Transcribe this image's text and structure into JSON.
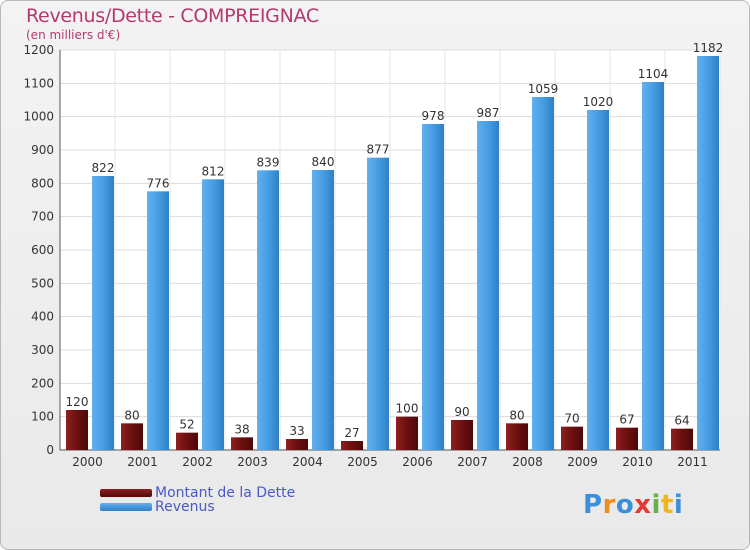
{
  "header": {
    "title": "Revenus/Dette - COMPREIGNAC",
    "subtitle": "(en milliers d'€)"
  },
  "legend": {
    "items": [
      {
        "label": "Montant de la Dette",
        "color": "#6b0f0f"
      },
      {
        "label": "Revenus",
        "color": "#4a9ee0"
      }
    ]
  },
  "logo": {
    "text": "Proxiti"
  },
  "colors": {
    "debt": "#6b0f0f",
    "debt_light": "#a03434",
    "revenue": "#3f95dc",
    "revenue_light": "#62b0ee",
    "title": "#b43a6e"
  },
  "chart_data": {
    "type": "bar",
    "title": "Revenus/Dette - COMPREIGNAC",
    "ylabel": "(en milliers d'€)",
    "xlabel": "",
    "categories": [
      "2000",
      "2001",
      "2002",
      "2003",
      "2004",
      "2005",
      "2006",
      "2007",
      "2008",
      "2009",
      "2010",
      "2011"
    ],
    "series": [
      {
        "name": "Montant de la Dette",
        "values": [
          120,
          80,
          52,
          38,
          33,
          27,
          100,
          90,
          80,
          70,
          67,
          64
        ]
      },
      {
        "name": "Revenus",
        "values": [
          822,
          776,
          812,
          839,
          840,
          877,
          978,
          987,
          1059,
          1020,
          1104,
          1182
        ]
      }
    ],
    "ylim": [
      0,
      1200
    ],
    "yticks": [
      0,
      100,
      200,
      300,
      400,
      500,
      600,
      700,
      800,
      900,
      1000,
      1100,
      1200
    ],
    "grid": true,
    "legend_position": "bottom-left"
  }
}
